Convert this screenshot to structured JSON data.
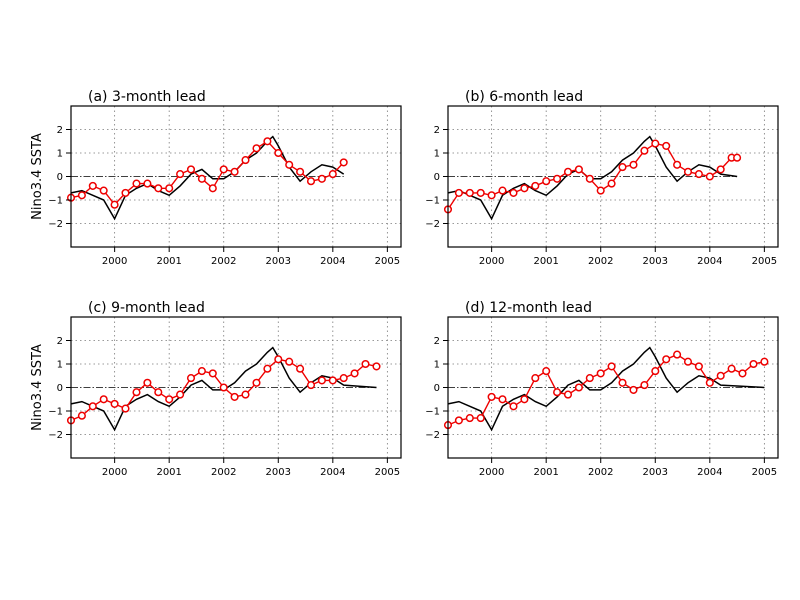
{
  "chart_data": [
    {
      "type": "line",
      "title": "(a) 3-month lead",
      "ylabel": "Nino3.4 SSTA",
      "xlim": [
        1999.2,
        2005.25
      ],
      "ylim": [
        -3,
        3
      ],
      "x_ticks": [
        2000,
        2001,
        2002,
        2003,
        2004,
        2005
      ],
      "y_ticks": [
        -2,
        -1,
        0,
        1,
        2
      ],
      "grid": true,
      "series": [
        {
          "role": "observed",
          "color": "#000000",
          "x": [
            1999.2,
            1999.4,
            1999.6,
            1999.8,
            2000.0,
            2000.2,
            2000.4,
            2000.6,
            2000.8,
            2001.0,
            2001.2,
            2001.4,
            2001.6,
            2001.8,
            2002.0,
            2002.2,
            2002.4,
            2002.6,
            2002.8,
            2002.9,
            2003.0,
            2003.2,
            2003.4,
            2003.6,
            2003.8,
            2004.0,
            2004.2
          ],
          "y": [
            -0.7,
            -0.6,
            -0.8,
            -1.0,
            -1.8,
            -0.8,
            -0.5,
            -0.3,
            -0.6,
            -0.8,
            -0.4,
            0.1,
            0.3,
            -0.1,
            -0.1,
            0.2,
            0.7,
            1.0,
            1.5,
            1.7,
            1.3,
            0.4,
            -0.2,
            0.2,
            0.5,
            0.4,
            0.1
          ]
        },
        {
          "role": "forecast",
          "color": "#ee0000",
          "x": [
            1999.2,
            1999.4,
            1999.6,
            1999.8,
            2000.0,
            2000.2,
            2000.4,
            2000.6,
            2000.8,
            2001.0,
            2001.2,
            2001.4,
            2001.6,
            2001.8,
            2002.0,
            2002.2,
            2002.4,
            2002.6,
            2002.8,
            2003.0,
            2003.2,
            2003.4,
            2003.6,
            2003.8,
            2004.0,
            2004.2
          ],
          "y": [
            -0.9,
            -0.8,
            -0.4,
            -0.6,
            -1.2,
            -0.7,
            -0.3,
            -0.3,
            -0.5,
            -0.5,
            0.1,
            0.3,
            -0.1,
            -0.5,
            0.3,
            0.2,
            0.7,
            1.2,
            1.5,
            1.0,
            0.5,
            0.2,
            -0.2,
            -0.1,
            0.1,
            0.6
          ]
        }
      ]
    },
    {
      "type": "line",
      "title": "(b) 6-month lead",
      "xlim": [
        1999.2,
        2005.25
      ],
      "ylim": [
        -3,
        3
      ],
      "x_ticks": [
        2000,
        2001,
        2002,
        2003,
        2004,
        2005
      ],
      "y_ticks": [
        -2,
        -1,
        0,
        1,
        2
      ],
      "grid": true,
      "series": [
        {
          "role": "observed",
          "color": "#000000",
          "x": [
            1999.2,
            1999.4,
            1999.6,
            1999.8,
            2000.0,
            2000.2,
            2000.4,
            2000.6,
            2000.8,
            2001.0,
            2001.2,
            2001.4,
            2001.6,
            2001.8,
            2002.0,
            2002.2,
            2002.4,
            2002.6,
            2002.8,
            2002.9,
            2003.0,
            2003.2,
            2003.4,
            2003.6,
            2003.8,
            2004.0,
            2004.2,
            2004.5
          ],
          "y": [
            -0.7,
            -0.6,
            -0.8,
            -1.0,
            -1.8,
            -0.8,
            -0.5,
            -0.3,
            -0.6,
            -0.8,
            -0.4,
            0.1,
            0.3,
            -0.1,
            -0.1,
            0.2,
            0.7,
            1.0,
            1.5,
            1.7,
            1.3,
            0.4,
            -0.2,
            0.2,
            0.5,
            0.4,
            0.1,
            0.0
          ]
        },
        {
          "role": "forecast",
          "color": "#ee0000",
          "x": [
            1999.2,
            1999.4,
            1999.6,
            1999.8,
            2000.0,
            2000.2,
            2000.4,
            2000.6,
            2000.8,
            2001.0,
            2001.2,
            2001.4,
            2001.6,
            2001.8,
            2002.0,
            2002.2,
            2002.4,
            2002.6,
            2002.8,
            2003.0,
            2003.2,
            2003.4,
            2003.6,
            2003.8,
            2004.0,
            2004.2,
            2004.4,
            2004.5
          ],
          "y": [
            -1.4,
            -0.7,
            -0.7,
            -0.7,
            -0.8,
            -0.6,
            -0.7,
            -0.5,
            -0.4,
            -0.2,
            -0.1,
            0.2,
            0.3,
            -0.1,
            -0.6,
            -0.3,
            0.4,
            0.5,
            1.1,
            1.4,
            1.3,
            0.5,
            0.2,
            0.1,
            0.0,
            0.3,
            0.8,
            0.8
          ]
        }
      ]
    },
    {
      "type": "line",
      "title": "(c) 9-month lead",
      "ylabel": "Nino3.4 SSTA",
      "xlim": [
        1999.2,
        2005.25
      ],
      "ylim": [
        -3,
        3
      ],
      "x_ticks": [
        2000,
        2001,
        2002,
        2003,
        2004,
        2005
      ],
      "y_ticks": [
        -2,
        -1,
        0,
        1,
        2
      ],
      "grid": true,
      "series": [
        {
          "role": "observed",
          "color": "#000000",
          "x": [
            1999.2,
            1999.4,
            1999.6,
            1999.8,
            2000.0,
            2000.2,
            2000.4,
            2000.6,
            2000.8,
            2001.0,
            2001.2,
            2001.4,
            2001.6,
            2001.8,
            2002.0,
            2002.2,
            2002.4,
            2002.6,
            2002.8,
            2002.9,
            2003.0,
            2003.2,
            2003.4,
            2003.6,
            2003.8,
            2004.0,
            2004.2,
            2004.8
          ],
          "y": [
            -0.7,
            -0.6,
            -0.8,
            -1.0,
            -1.8,
            -0.8,
            -0.5,
            -0.3,
            -0.6,
            -0.8,
            -0.4,
            0.1,
            0.3,
            -0.1,
            -0.1,
            0.2,
            0.7,
            1.0,
            1.5,
            1.7,
            1.3,
            0.4,
            -0.2,
            0.2,
            0.5,
            0.4,
            0.1,
            0.0
          ]
        },
        {
          "role": "forecast",
          "color": "#ee0000",
          "x": [
            1999.2,
            1999.4,
            1999.6,
            1999.8,
            2000.0,
            2000.2,
            2000.4,
            2000.6,
            2000.8,
            2001.0,
            2001.2,
            2001.4,
            2001.6,
            2001.8,
            2002.0,
            2002.2,
            2002.4,
            2002.6,
            2002.8,
            2003.0,
            2003.2,
            2003.4,
            2003.6,
            2003.8,
            2004.0,
            2004.2,
            2004.4,
            2004.6,
            2004.8
          ],
          "y": [
            -1.4,
            -1.2,
            -0.8,
            -0.5,
            -0.7,
            -0.9,
            -0.2,
            0.2,
            -0.2,
            -0.5,
            -0.3,
            0.4,
            0.7,
            0.6,
            0.0,
            -0.4,
            -0.3,
            0.2,
            0.8,
            1.2,
            1.1,
            0.8,
            0.1,
            0.3,
            0.3,
            0.4,
            0.6,
            1.0,
            0.9
          ]
        }
      ]
    },
    {
      "type": "line",
      "title": "(d) 12-month lead",
      "xlim": [
        1999.2,
        2005.25
      ],
      "ylim": [
        -3,
        3
      ],
      "x_ticks": [
        2000,
        2001,
        2002,
        2003,
        2004,
        2005
      ],
      "y_ticks": [
        -2,
        -1,
        0,
        1,
        2
      ],
      "grid": true,
      "series": [
        {
          "role": "observed",
          "color": "#000000",
          "x": [
            1999.2,
            1999.4,
            1999.6,
            1999.8,
            2000.0,
            2000.2,
            2000.4,
            2000.6,
            2000.8,
            2001.0,
            2001.2,
            2001.4,
            2001.6,
            2001.8,
            2002.0,
            2002.2,
            2002.4,
            2002.6,
            2002.8,
            2002.9,
            2003.0,
            2003.2,
            2003.4,
            2003.6,
            2003.8,
            2004.0,
            2004.2,
            2005.0
          ],
          "y": [
            -0.7,
            -0.6,
            -0.8,
            -1.0,
            -1.8,
            -0.8,
            -0.5,
            -0.3,
            -0.6,
            -0.8,
            -0.4,
            0.1,
            0.3,
            -0.1,
            -0.1,
            0.2,
            0.7,
            1.0,
            1.5,
            1.7,
            1.3,
            0.4,
            -0.2,
            0.2,
            0.5,
            0.4,
            0.1,
            0.0
          ]
        },
        {
          "role": "forecast",
          "color": "#ee0000",
          "x": [
            1999.2,
            1999.4,
            1999.6,
            1999.8,
            2000.0,
            2000.2,
            2000.4,
            2000.6,
            2000.8,
            2001.0,
            2001.2,
            2001.4,
            2001.6,
            2001.8,
            2002.0,
            2002.2,
            2002.4,
            2002.6,
            2002.8,
            2003.0,
            2003.2,
            2003.4,
            2003.6,
            2003.8,
            2004.0,
            2004.2,
            2004.4,
            2004.6,
            2004.8,
            2005.0
          ],
          "y": [
            -1.6,
            -1.4,
            -1.3,
            -1.3,
            -0.4,
            -0.5,
            -0.8,
            -0.5,
            0.4,
            0.7,
            -0.2,
            -0.3,
            0.0,
            0.4,
            0.6,
            0.9,
            0.2,
            -0.1,
            0.1,
            0.7,
            1.2,
            1.4,
            1.1,
            0.9,
            0.2,
            0.5,
            0.8,
            0.6,
            1.0,
            1.1
          ]
        }
      ]
    }
  ]
}
